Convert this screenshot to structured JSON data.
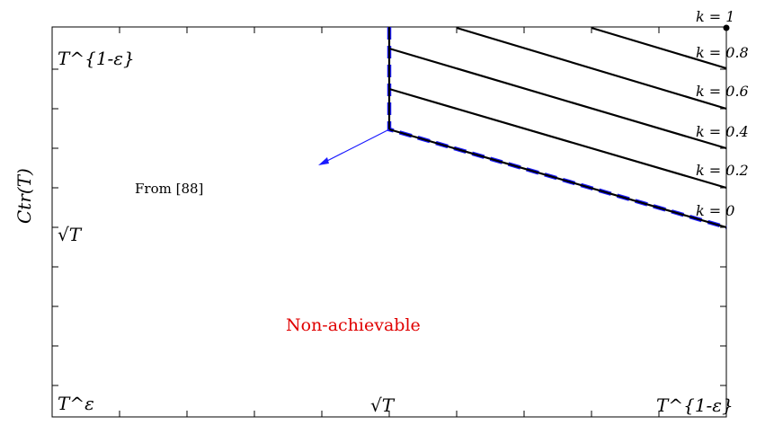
{
  "ylabel": "Ctr(T)",
  "y_ticks": {
    "top": "T^{1-ε}",
    "mid": "√T",
    "bottom": "T^ε"
  },
  "x_ticks": {
    "mid": "√T",
    "right": "T^{1-ε}"
  },
  "k_labels": [
    "k = 1",
    "k = 0.8",
    "k = 0.6",
    "k = 0.4",
    "k = 0.2",
    "k = 0"
  ],
  "annotation": "From [88]",
  "region_label": "Non-achievable",
  "colors": {
    "axis": "#000000",
    "hatch": "#000000",
    "boundary": "#1a1aff",
    "arrow": "#1a1aff",
    "region_label": "#e00000"
  }
}
